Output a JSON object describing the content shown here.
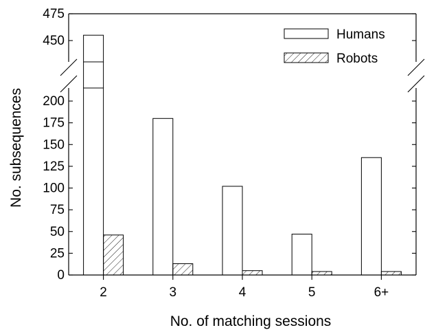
{
  "chart_data": {
    "type": "bar",
    "title": "",
    "xlabel": "No. of matching sessions",
    "ylabel": "No. subsequences",
    "categories": [
      "2",
      "3",
      "4",
      "5",
      "6+"
    ],
    "series": [
      {
        "name": "Humans",
        "values": [
          455,
          180,
          102,
          47,
          135
        ],
        "pattern": "solid",
        "color": "#ffffff"
      },
      {
        "name": "Robots",
        "values": [
          46,
          13,
          5,
          4,
          4
        ],
        "pattern": "hatched",
        "color": "#ffffff"
      }
    ],
    "y_axis_break": {
      "lower_range": [
        0,
        210
      ],
      "upper_range": [
        430,
        475
      ]
    },
    "yticks_lower": [
      0,
      25,
      50,
      75,
      100,
      125,
      150,
      175,
      200
    ],
    "yticks_upper": [
      450,
      475
    ],
    "legend_position": "top-right",
    "grid": false
  }
}
